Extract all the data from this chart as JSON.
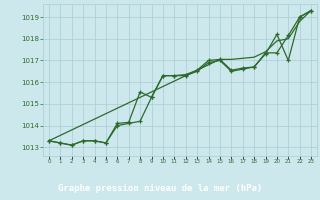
{
  "title": "Graphe pression niveau de la mer (hPa)",
  "x_labels": [
    "0",
    "1",
    "2",
    "3",
    "4",
    "5",
    "6",
    "7",
    "8",
    "9",
    "10",
    "11",
    "12",
    "13",
    "14",
    "15",
    "16",
    "17",
    "18",
    "19",
    "20",
    "21",
    "22",
    "23"
  ],
  "ylim": [
    1012.6,
    1019.6
  ],
  "yticks": [
    1013,
    1014,
    1015,
    1016,
    1017,
    1018,
    1019
  ],
  "line_smooth": [
    1013.3,
    1013.55,
    1013.8,
    1014.05,
    1014.3,
    1014.55,
    1014.8,
    1015.05,
    1015.3,
    1015.55,
    1015.8,
    1016.05,
    1016.3,
    1016.55,
    1016.8,
    1017.05,
    1017.05,
    1017.1,
    1017.15,
    1017.4,
    1017.9,
    1018.0,
    1018.8,
    1019.3
  ],
  "line_high": [
    1013.3,
    1013.2,
    1013.1,
    1013.3,
    1013.3,
    1013.2,
    1014.1,
    1014.15,
    1015.55,
    1015.3,
    1016.3,
    1016.3,
    1016.35,
    1016.55,
    1017.0,
    1017.05,
    1016.55,
    1016.65,
    1016.7,
    1017.35,
    1017.35,
    1018.15,
    1019.0,
    1019.3
  ],
  "line_low": [
    1013.3,
    1013.2,
    1013.1,
    1013.3,
    1013.3,
    1013.2,
    1014.0,
    1014.1,
    1014.2,
    1015.3,
    1016.3,
    1016.3,
    1016.3,
    1016.5,
    1016.9,
    1017.0,
    1016.5,
    1016.6,
    1016.7,
    1017.3,
    1018.2,
    1017.0,
    1019.0,
    1019.3
  ],
  "bg_color": "#cde8ec",
  "grid_color": "#aaccd4",
  "line_color": "#2d6a2d",
  "title_bg": "#2d6a2d",
  "title_fg": "#ffffff"
}
